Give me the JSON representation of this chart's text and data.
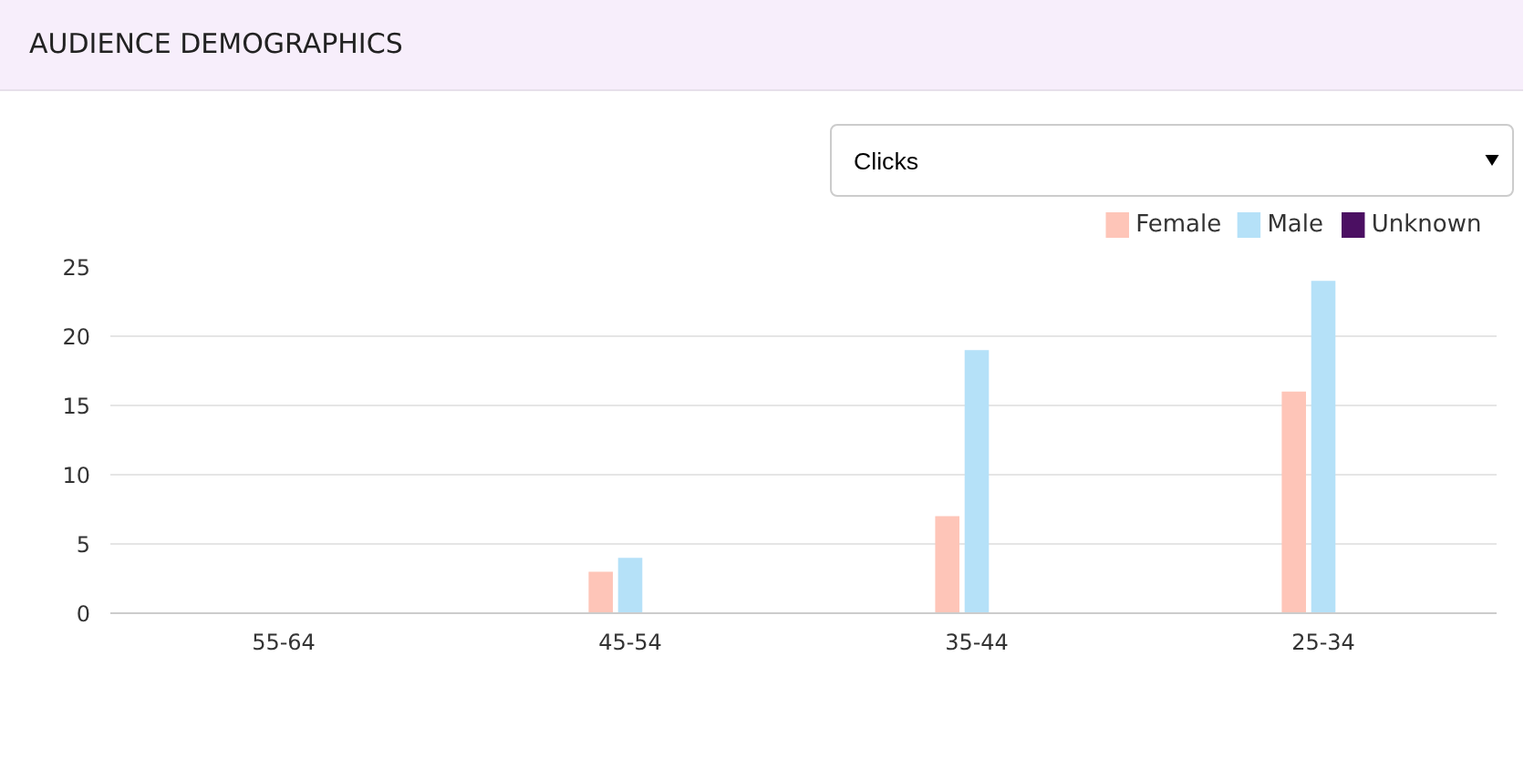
{
  "chart_data": {
    "type": "bar",
    "title": "AUDIENCE DEMOGRAPHICS",
    "annotations": [
      "Clicks"
    ],
    "categories": [
      "55-64",
      "45-54",
      "35-44",
      "25-34"
    ],
    "series": [
      {
        "name": "Female",
        "color": "#fec5b8",
        "values": [
          0,
          3,
          7,
          16
        ]
      },
      {
        "name": "Male",
        "color": "#b5e1f8",
        "values": [
          0,
          4,
          19,
          24
        ]
      },
      {
        "name": "Unknown",
        "color": "#4b0f62",
        "values": [
          0,
          0,
          0,
          0
        ]
      }
    ],
    "ylim": [
      0,
      25
    ],
    "yticks": [
      0,
      5,
      10,
      15,
      20,
      25
    ],
    "grid": "y",
    "legend": "top right"
  }
}
